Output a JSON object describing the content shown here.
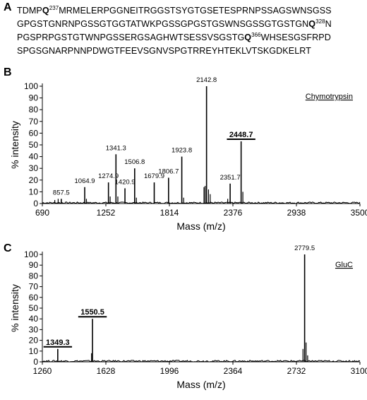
{
  "panels": [
    {
      "letter": "A"
    },
    {
      "letter": "B"
    },
    {
      "letter": "C"
    }
  ],
  "sequence": {
    "lines": [
      [
        {
          "t": "TDMP"
        },
        {
          "t": "Q",
          "b": true
        },
        {
          "t": "237",
          "sup": true
        },
        {
          "t": "MRMELERPGGNEITRGGSTSYGTGSETESPRNPSSAGSWNSGSS"
        }
      ],
      [
        {
          "t": "GPGSTGNRNPGSSGTGGTATWKPGSSGPGSTGSWNSGSSGTGSTGN"
        },
        {
          "t": "Q",
          "b": true
        },
        {
          "t": "328",
          "sup": true
        },
        {
          "t": "N"
        }
      ],
      [
        {
          "t": "PGSPRPGSTGTWNPGSSERGSAGHWTSESSVSGSTG"
        },
        {
          "t": "Q",
          "b": true
        },
        {
          "t": "366",
          "sup": true
        },
        {
          "t": "WHSESGSFRPD"
        }
      ],
      [
        {
          "t": "SPGSGNARPNNPDWGTFEEVSGNVSPGTRREYHTEKLVTSKGDKELRT"
        }
      ]
    ]
  },
  "chart_data": [
    {
      "type": "line",
      "panel": "B",
      "annotation": "Chymotrypsin",
      "xlabel": "Mass (m/z)",
      "ylabel": "% intensity",
      "xlim": [
        690,
        3500
      ],
      "ylim": [
        0,
        100
      ],
      "xticks": [
        690,
        1252,
        1814,
        2376,
        2938,
        3500
      ],
      "yticks": [
        0,
        10,
        20,
        30,
        40,
        50,
        60,
        70,
        80,
        90,
        100
      ],
      "peaks": [
        {
          "x": 857.5,
          "y": 4,
          "label": "857.5"
        },
        {
          "x": 1064.9,
          "y": 14,
          "label": "1064.9"
        },
        {
          "x": 1274.9,
          "y": 18,
          "label": "1274.9"
        },
        {
          "x": 1341.3,
          "y": 42,
          "label": "1341.3"
        },
        {
          "x": 1420.9,
          "y": 13,
          "label": "1420.9"
        },
        {
          "x": 1506.8,
          "y": 30,
          "label": "1506.8"
        },
        {
          "x": 1679.9,
          "y": 18,
          "label": "1679.9"
        },
        {
          "x": 1806.7,
          "y": 22,
          "label": "1806.7"
        },
        {
          "x": 1923.8,
          "y": 40,
          "label": "1923.8"
        },
        {
          "x": 2142.8,
          "y": 100,
          "label": "2142.8"
        },
        {
          "x": 2351.7,
          "y": 17,
          "label": "2351.7"
        },
        {
          "x": 2448.7,
          "y": 53,
          "label": "2448.7",
          "emphasis": true
        }
      ],
      "minor_peaks": [
        {
          "x": 800,
          "y": 3
        },
        {
          "x": 830,
          "y": 4
        },
        {
          "x": 1080,
          "y": 4
        },
        {
          "x": 1290,
          "y": 6
        },
        {
          "x": 1358,
          "y": 6
        },
        {
          "x": 1522,
          "y": 5
        },
        {
          "x": 1940,
          "y": 5
        },
        {
          "x": 2120,
          "y": 14
        },
        {
          "x": 2130,
          "y": 15
        },
        {
          "x": 2160,
          "y": 12
        },
        {
          "x": 2175,
          "y": 8
        },
        {
          "x": 2464,
          "y": 10
        },
        {
          "x": 2330,
          "y": 4
        }
      ]
    },
    {
      "type": "line",
      "panel": "C",
      "annotation": "GluC",
      "xlabel": "Mass (m/z)",
      "ylabel": "% intensity",
      "xlim": [
        1260,
        3100
      ],
      "ylim": [
        0,
        100
      ],
      "xticks": [
        1260,
        1628,
        1996,
        2364,
        2732,
        3100
      ],
      "yticks": [
        0,
        10,
        20,
        30,
        40,
        50,
        60,
        70,
        80,
        90,
        100
      ],
      "peaks": [
        {
          "x": 1349.3,
          "y": 12,
          "label": "1349.3",
          "emphasis": true
        },
        {
          "x": 1550.5,
          "y": 40,
          "label": "1550.5",
          "emphasis": true
        },
        {
          "x": 2779.5,
          "y": 100,
          "label": "2779.5"
        }
      ],
      "minor_peaks": [
        {
          "x": 1545,
          "y": 8
        },
        {
          "x": 2770,
          "y": 12
        },
        {
          "x": 2788,
          "y": 18
        },
        {
          "x": 2797,
          "y": 6
        }
      ]
    }
  ]
}
